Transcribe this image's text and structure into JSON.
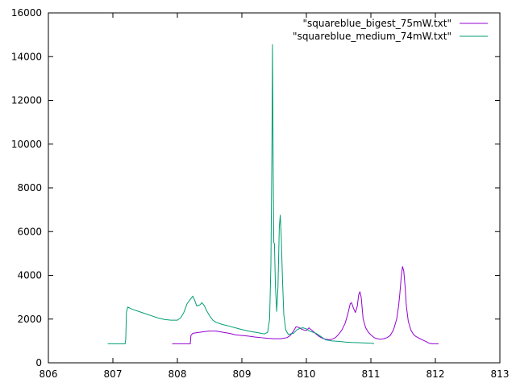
{
  "chart_data": {
    "type": "line",
    "title": "",
    "xlabel": "",
    "ylabel": "",
    "xlim": [
      806,
      813
    ],
    "ylim": [
      0,
      16000
    ],
    "xticks": [
      "806",
      "807",
      "808",
      "809",
      "810",
      "811",
      "812",
      "813"
    ],
    "yticks": [
      "0",
      "2000",
      "4000",
      "6000",
      "8000",
      "10000",
      "12000",
      "14000",
      "16000"
    ],
    "grid": false,
    "legend_position": "top-right",
    "series": [
      {
        "name": "\"squareblue_bigest_75mW.txt\"",
        "color": "#9400d3",
        "points": [
          [
            807.92,
            870
          ],
          [
            808.1,
            870
          ],
          [
            808.2,
            870
          ],
          [
            808.21,
            1250
          ],
          [
            808.24,
            1350
          ],
          [
            808.3,
            1380
          ],
          [
            808.4,
            1420
          ],
          [
            808.5,
            1450
          ],
          [
            808.6,
            1450
          ],
          [
            808.7,
            1400
          ],
          [
            808.8,
            1350
          ],
          [
            808.9,
            1280
          ],
          [
            809.0,
            1250
          ],
          [
            809.1,
            1220
          ],
          [
            809.2,
            1180
          ],
          [
            809.3,
            1150
          ],
          [
            809.4,
            1120
          ],
          [
            809.5,
            1100
          ],
          [
            809.6,
            1100
          ],
          [
            809.7,
            1150
          ],
          [
            809.75,
            1250
          ],
          [
            809.8,
            1450
          ],
          [
            809.84,
            1650
          ],
          [
            809.88,
            1620
          ],
          [
            809.92,
            1550
          ],
          [
            809.96,
            1500
          ],
          [
            810.0,
            1480
          ],
          [
            810.04,
            1600
          ],
          [
            810.06,
            1550
          ],
          [
            810.1,
            1450
          ],
          [
            810.15,
            1320
          ],
          [
            810.2,
            1200
          ],
          [
            810.25,
            1120
          ],
          [
            810.3,
            1080
          ],
          [
            810.35,
            1060
          ],
          [
            810.4,
            1080
          ],
          [
            810.45,
            1150
          ],
          [
            810.5,
            1300
          ],
          [
            810.55,
            1500
          ],
          [
            810.6,
            1800
          ],
          [
            810.64,
            2200
          ],
          [
            810.68,
            2700
          ],
          [
            810.7,
            2750
          ],
          [
            810.73,
            2500
          ],
          [
            810.76,
            2300
          ],
          [
            810.79,
            2600
          ],
          [
            810.81,
            3100
          ],
          [
            810.83,
            3250
          ],
          [
            810.85,
            3000
          ],
          [
            810.88,
            2000
          ],
          [
            810.92,
            1600
          ],
          [
            810.96,
            1400
          ],
          [
            811.0,
            1280
          ],
          [
            811.05,
            1150
          ],
          [
            811.1,
            1100
          ],
          [
            811.15,
            1080
          ],
          [
            811.2,
            1100
          ],
          [
            811.25,
            1150
          ],
          [
            811.3,
            1250
          ],
          [
            811.35,
            1500
          ],
          [
            811.4,
            2000
          ],
          [
            811.43,
            2600
          ],
          [
            811.45,
            3200
          ],
          [
            811.47,
            3900
          ],
          [
            811.49,
            4400
          ],
          [
            811.51,
            4200
          ],
          [
            811.53,
            3500
          ],
          [
            811.55,
            2600
          ],
          [
            811.58,
            1900
          ],
          [
            811.62,
            1500
          ],
          [
            811.66,
            1300
          ],
          [
            811.7,
            1200
          ],
          [
            811.75,
            1120
          ],
          [
            811.8,
            1050
          ],
          [
            811.85,
            980
          ],
          [
            811.9,
            900
          ],
          [
            811.95,
            870
          ],
          [
            812.05,
            870
          ]
        ]
      },
      {
        "name": "\"squareblue_medium_74mW.txt\"",
        "color": "#009e73",
        "points": [
          [
            806.92,
            870
          ],
          [
            807.1,
            870
          ],
          [
            807.19,
            870
          ],
          [
            807.2,
            1100
          ],
          [
            807.21,
            2300
          ],
          [
            807.23,
            2550
          ],
          [
            807.3,
            2450
          ],
          [
            807.4,
            2350
          ],
          [
            807.5,
            2250
          ],
          [
            807.6,
            2150
          ],
          [
            807.7,
            2050
          ],
          [
            807.8,
            1980
          ],
          [
            807.9,
            1950
          ],
          [
            808.0,
            1950
          ],
          [
            808.05,
            2050
          ],
          [
            808.1,
            2300
          ],
          [
            808.15,
            2700
          ],
          [
            808.2,
            2900
          ],
          [
            808.24,
            3050
          ],
          [
            808.27,
            2850
          ],
          [
            808.3,
            2600
          ],
          [
            808.35,
            2650
          ],
          [
            808.38,
            2750
          ],
          [
            808.42,
            2600
          ],
          [
            808.45,
            2400
          ],
          [
            808.5,
            2150
          ],
          [
            808.55,
            1950
          ],
          [
            808.6,
            1850
          ],
          [
            808.7,
            1750
          ],
          [
            808.8,
            1680
          ],
          [
            808.9,
            1600
          ],
          [
            809.0,
            1520
          ],
          [
            809.1,
            1450
          ],
          [
            809.2,
            1400
          ],
          [
            809.3,
            1350
          ],
          [
            809.35,
            1320
          ],
          [
            809.4,
            1400
          ],
          [
            809.43,
            2000
          ],
          [
            809.45,
            4500
          ],
          [
            809.465,
            9500
          ],
          [
            809.475,
            14550
          ],
          [
            809.485,
            9000
          ],
          [
            809.495,
            5500
          ],
          [
            809.505,
            5450
          ],
          [
            809.52,
            3500
          ],
          [
            809.54,
            2350
          ],
          [
            809.56,
            3500
          ],
          [
            809.58,
            6200
          ],
          [
            809.595,
            6750
          ],
          [
            809.61,
            5800
          ],
          [
            809.63,
            3800
          ],
          [
            809.65,
            2200
          ],
          [
            809.68,
            1500
          ],
          [
            809.72,
            1300
          ],
          [
            809.8,
            1350
          ],
          [
            809.85,
            1500
          ],
          [
            809.9,
            1580
          ],
          [
            809.95,
            1600
          ],
          [
            810.0,
            1550
          ],
          [
            810.05,
            1450
          ],
          [
            810.1,
            1400
          ],
          [
            810.15,
            1350
          ],
          [
            810.2,
            1250
          ],
          [
            810.25,
            1150
          ],
          [
            810.3,
            1050
          ],
          [
            810.4,
            1000
          ],
          [
            810.5,
            980
          ],
          [
            810.6,
            950
          ],
          [
            810.7,
            930
          ],
          [
            810.8,
            920
          ],
          [
            810.9,
            910
          ],
          [
            811.0,
            900
          ],
          [
            811.05,
            880
          ]
        ]
      }
    ]
  }
}
